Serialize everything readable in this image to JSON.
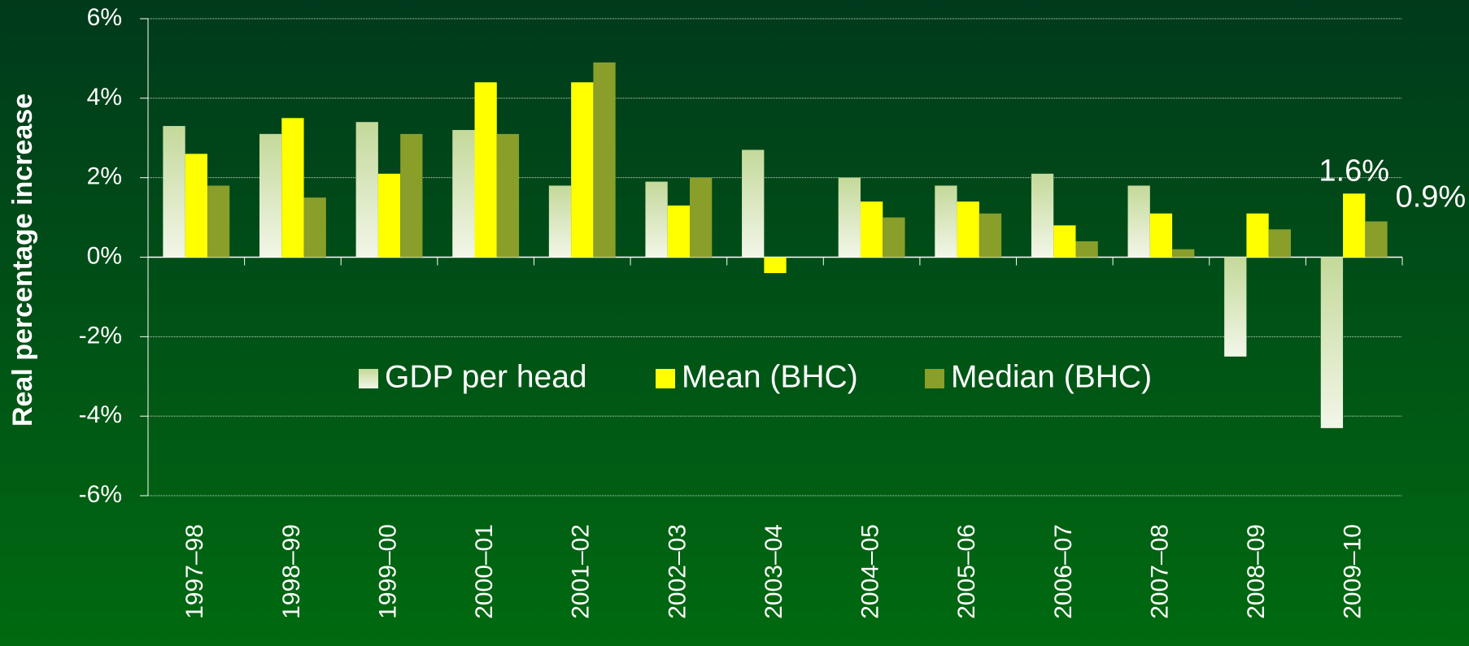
{
  "chart_data": {
    "type": "bar",
    "y_label": "Real percentage increase",
    "categories": [
      "1997–98",
      "1998–99",
      "1999–00",
      "2000–01",
      "2001–02",
      "2002–03",
      "2003–04",
      "2004–05",
      "2005–06",
      "2006–07",
      "2007–08",
      "2008–09",
      "2009–10"
    ],
    "series": [
      {
        "name": "GDP per head",
        "color": "#dbe8c4",
        "values": [
          3.3,
          3.1,
          3.4,
          3.2,
          1.8,
          1.9,
          2.7,
          2.0,
          1.8,
          2.1,
          1.8,
          -2.5,
          -4.3
        ]
      },
      {
        "name": "Mean (BHC)",
        "color": "#ffff00",
        "values": [
          2.6,
          3.5,
          2.1,
          4.4,
          4.4,
          1.3,
          -0.4,
          1.4,
          1.4,
          0.8,
          1.1,
          1.1,
          1.6
        ],
        "value_labels": [
          null,
          null,
          null,
          null,
          null,
          null,
          null,
          null,
          null,
          null,
          null,
          null,
          "1.6%"
        ]
      },
      {
        "name": "Median (BHC)",
        "color": "#8a9e2a",
        "values": [
          1.8,
          1.5,
          3.1,
          3.1,
          4.9,
          2.0,
          0,
          1.0,
          1.1,
          0.4,
          0.2,
          0.7,
          0.9
        ],
        "value_labels": [
          null,
          null,
          null,
          null,
          null,
          null,
          null,
          null,
          null,
          null,
          null,
          null,
          "0.9%"
        ]
      }
    ],
    "ylim": [
      -6,
      6
    ],
    "yticks": [
      {
        "value": -6,
        "label": "-6%"
      },
      {
        "value": -4,
        "label": "-4%"
      },
      {
        "value": -2,
        "label": "-2%"
      },
      {
        "value": 0,
        "label": "0%"
      },
      {
        "value": 2,
        "label": "2%"
      },
      {
        "value": 4,
        "label": "4%"
      },
      {
        "value": 6,
        "label": "6%"
      }
    ],
    "grid": true,
    "legend": "center"
  }
}
